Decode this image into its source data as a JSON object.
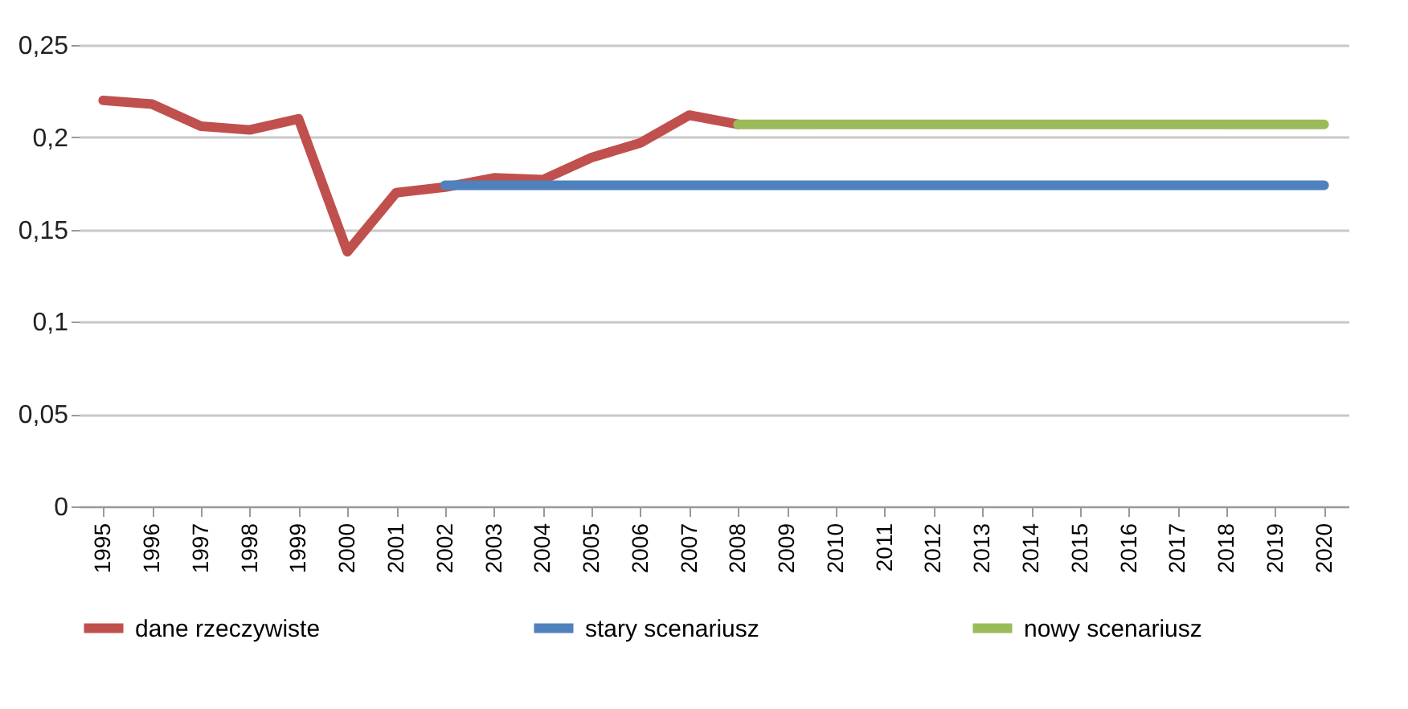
{
  "chart_data": {
    "type": "line",
    "categories": [
      "1995",
      "1996",
      "1997",
      "1998",
      "1999",
      "2000",
      "2001",
      "2002",
      "2003",
      "2004",
      "2005",
      "2006",
      "2007",
      "2008",
      "2009",
      "2010",
      "2011",
      "2012",
      "2013",
      "2014",
      "2015",
      "2016",
      "2017",
      "2018",
      "2019",
      "2020"
    ],
    "series": [
      {
        "name": "dane rzeczywiste",
        "color": "#c0504d",
        "values": [
          0.22,
          0.218,
          0.206,
          0.204,
          0.21,
          0.138,
          0.17,
          0.173,
          0.178,
          0.177,
          0.189,
          0.197,
          0.212,
          0.207,
          null,
          null,
          null,
          null,
          null,
          null,
          null,
          null,
          null,
          null,
          null,
          null
        ]
      },
      {
        "name": "stary scenariusz",
        "color": "#4f81bd",
        "values": [
          null,
          null,
          null,
          null,
          null,
          null,
          null,
          0.174,
          0.174,
          0.174,
          0.174,
          0.174,
          0.174,
          0.174,
          0.174,
          0.174,
          0.174,
          0.174,
          0.174,
          0.174,
          0.174,
          0.174,
          0.174,
          0.174,
          0.174,
          0.174
        ]
      },
      {
        "name": "nowy scenariusz",
        "color": "#9bbb59",
        "values": [
          null,
          null,
          null,
          null,
          null,
          null,
          null,
          null,
          null,
          null,
          null,
          null,
          null,
          0.207,
          0.207,
          0.207,
          0.207,
          0.207,
          0.207,
          0.207,
          0.207,
          0.207,
          0.207,
          0.207,
          0.207,
          0.207
        ]
      }
    ],
    "ylim": [
      0,
      0.25
    ],
    "yticks": [
      {
        "value": 0,
        "label": "0"
      },
      {
        "value": 0.05,
        "label": "0,05"
      },
      {
        "value": 0.1,
        "label": "0,1"
      },
      {
        "value": 0.15,
        "label": "0,15"
      },
      {
        "value": 0.2,
        "label": "0,2"
      },
      {
        "value": 0.25,
        "label": "0,25"
      }
    ],
    "grid": "y",
    "legend": "bottom",
    "marker": "none",
    "line_style": "solid"
  }
}
